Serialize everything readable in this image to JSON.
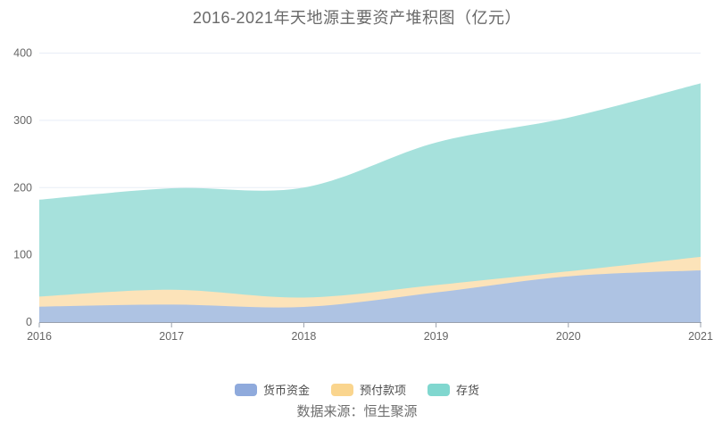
{
  "title": "2016-2021年天地源主要资产堆积图（亿元）",
  "source_text": "数据来源：恒生聚源",
  "colors": {
    "title_text": "#696969",
    "axis_label": "#666666",
    "axis_line": "#9aa1ad",
    "gridline": "#e8edf6",
    "background": "#ffffff"
  },
  "chart_data": {
    "type": "area",
    "stacked": true,
    "title": "2016-2021年天地源主要资产堆积图（亿元）",
    "categories": [
      "2016",
      "2017",
      "2018",
      "2019",
      "2020",
      "2021"
    ],
    "series": [
      {
        "name": "货币资金",
        "legend_color": "#8faadc",
        "area_color": "#aec3e3",
        "values": [
          23,
          26,
          22.5,
          44,
          68,
          77
        ]
      },
      {
        "name": "预付款项",
        "legend_color": "#fad58e",
        "area_color": "#fce3b9",
        "values": [
          15,
          22,
          14,
          11,
          7.5,
          20
        ]
      },
      {
        "name": "存货",
        "legend_color": "#80d7cf",
        "area_color": "#a6e1dc",
        "values": [
          144,
          151,
          163.5,
          212,
          228.5,
          258
        ]
      }
    ],
    "stack_totals": [
      182,
      199,
      200,
      267,
      304,
      355
    ],
    "xlabel": "",
    "ylabel": "",
    "ylim": [
      0,
      400
    ],
    "yticks": [
      0,
      100,
      200,
      300,
      400
    ],
    "grid": true,
    "legend_position": "bottom"
  }
}
